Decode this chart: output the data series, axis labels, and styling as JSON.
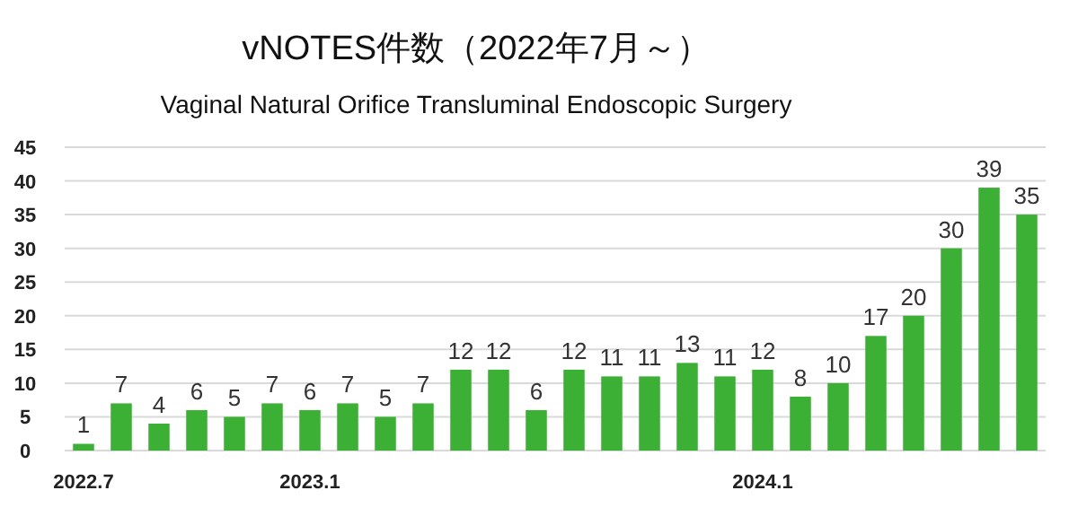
{
  "chart_data": {
    "type": "bar",
    "title": "vNOTES件数（2022年7月～）",
    "subtitle": "Vaginal Natural Orifice Transluminal Endoscopic Surgery",
    "categories": [
      "2022.7",
      null,
      null,
      null,
      null,
      null,
      "2023.1",
      null,
      null,
      null,
      null,
      null,
      null,
      null,
      null,
      null,
      null,
      null,
      "2024.1",
      null,
      null,
      null,
      null,
      null,
      null,
      null
    ],
    "values": [
      1,
      7,
      4,
      6,
      5,
      7,
      6,
      7,
      5,
      7,
      12,
      12,
      6,
      12,
      11,
      11,
      13,
      11,
      12,
      8,
      10,
      17,
      20,
      30,
      39,
      35
    ],
    "color": "#3cb034",
    "ylim": [
      0,
      45
    ],
    "yticks": [
      0,
      5,
      10,
      15,
      20,
      25,
      30,
      35,
      40,
      45
    ],
    "grid": "y",
    "data_labels": true
  }
}
